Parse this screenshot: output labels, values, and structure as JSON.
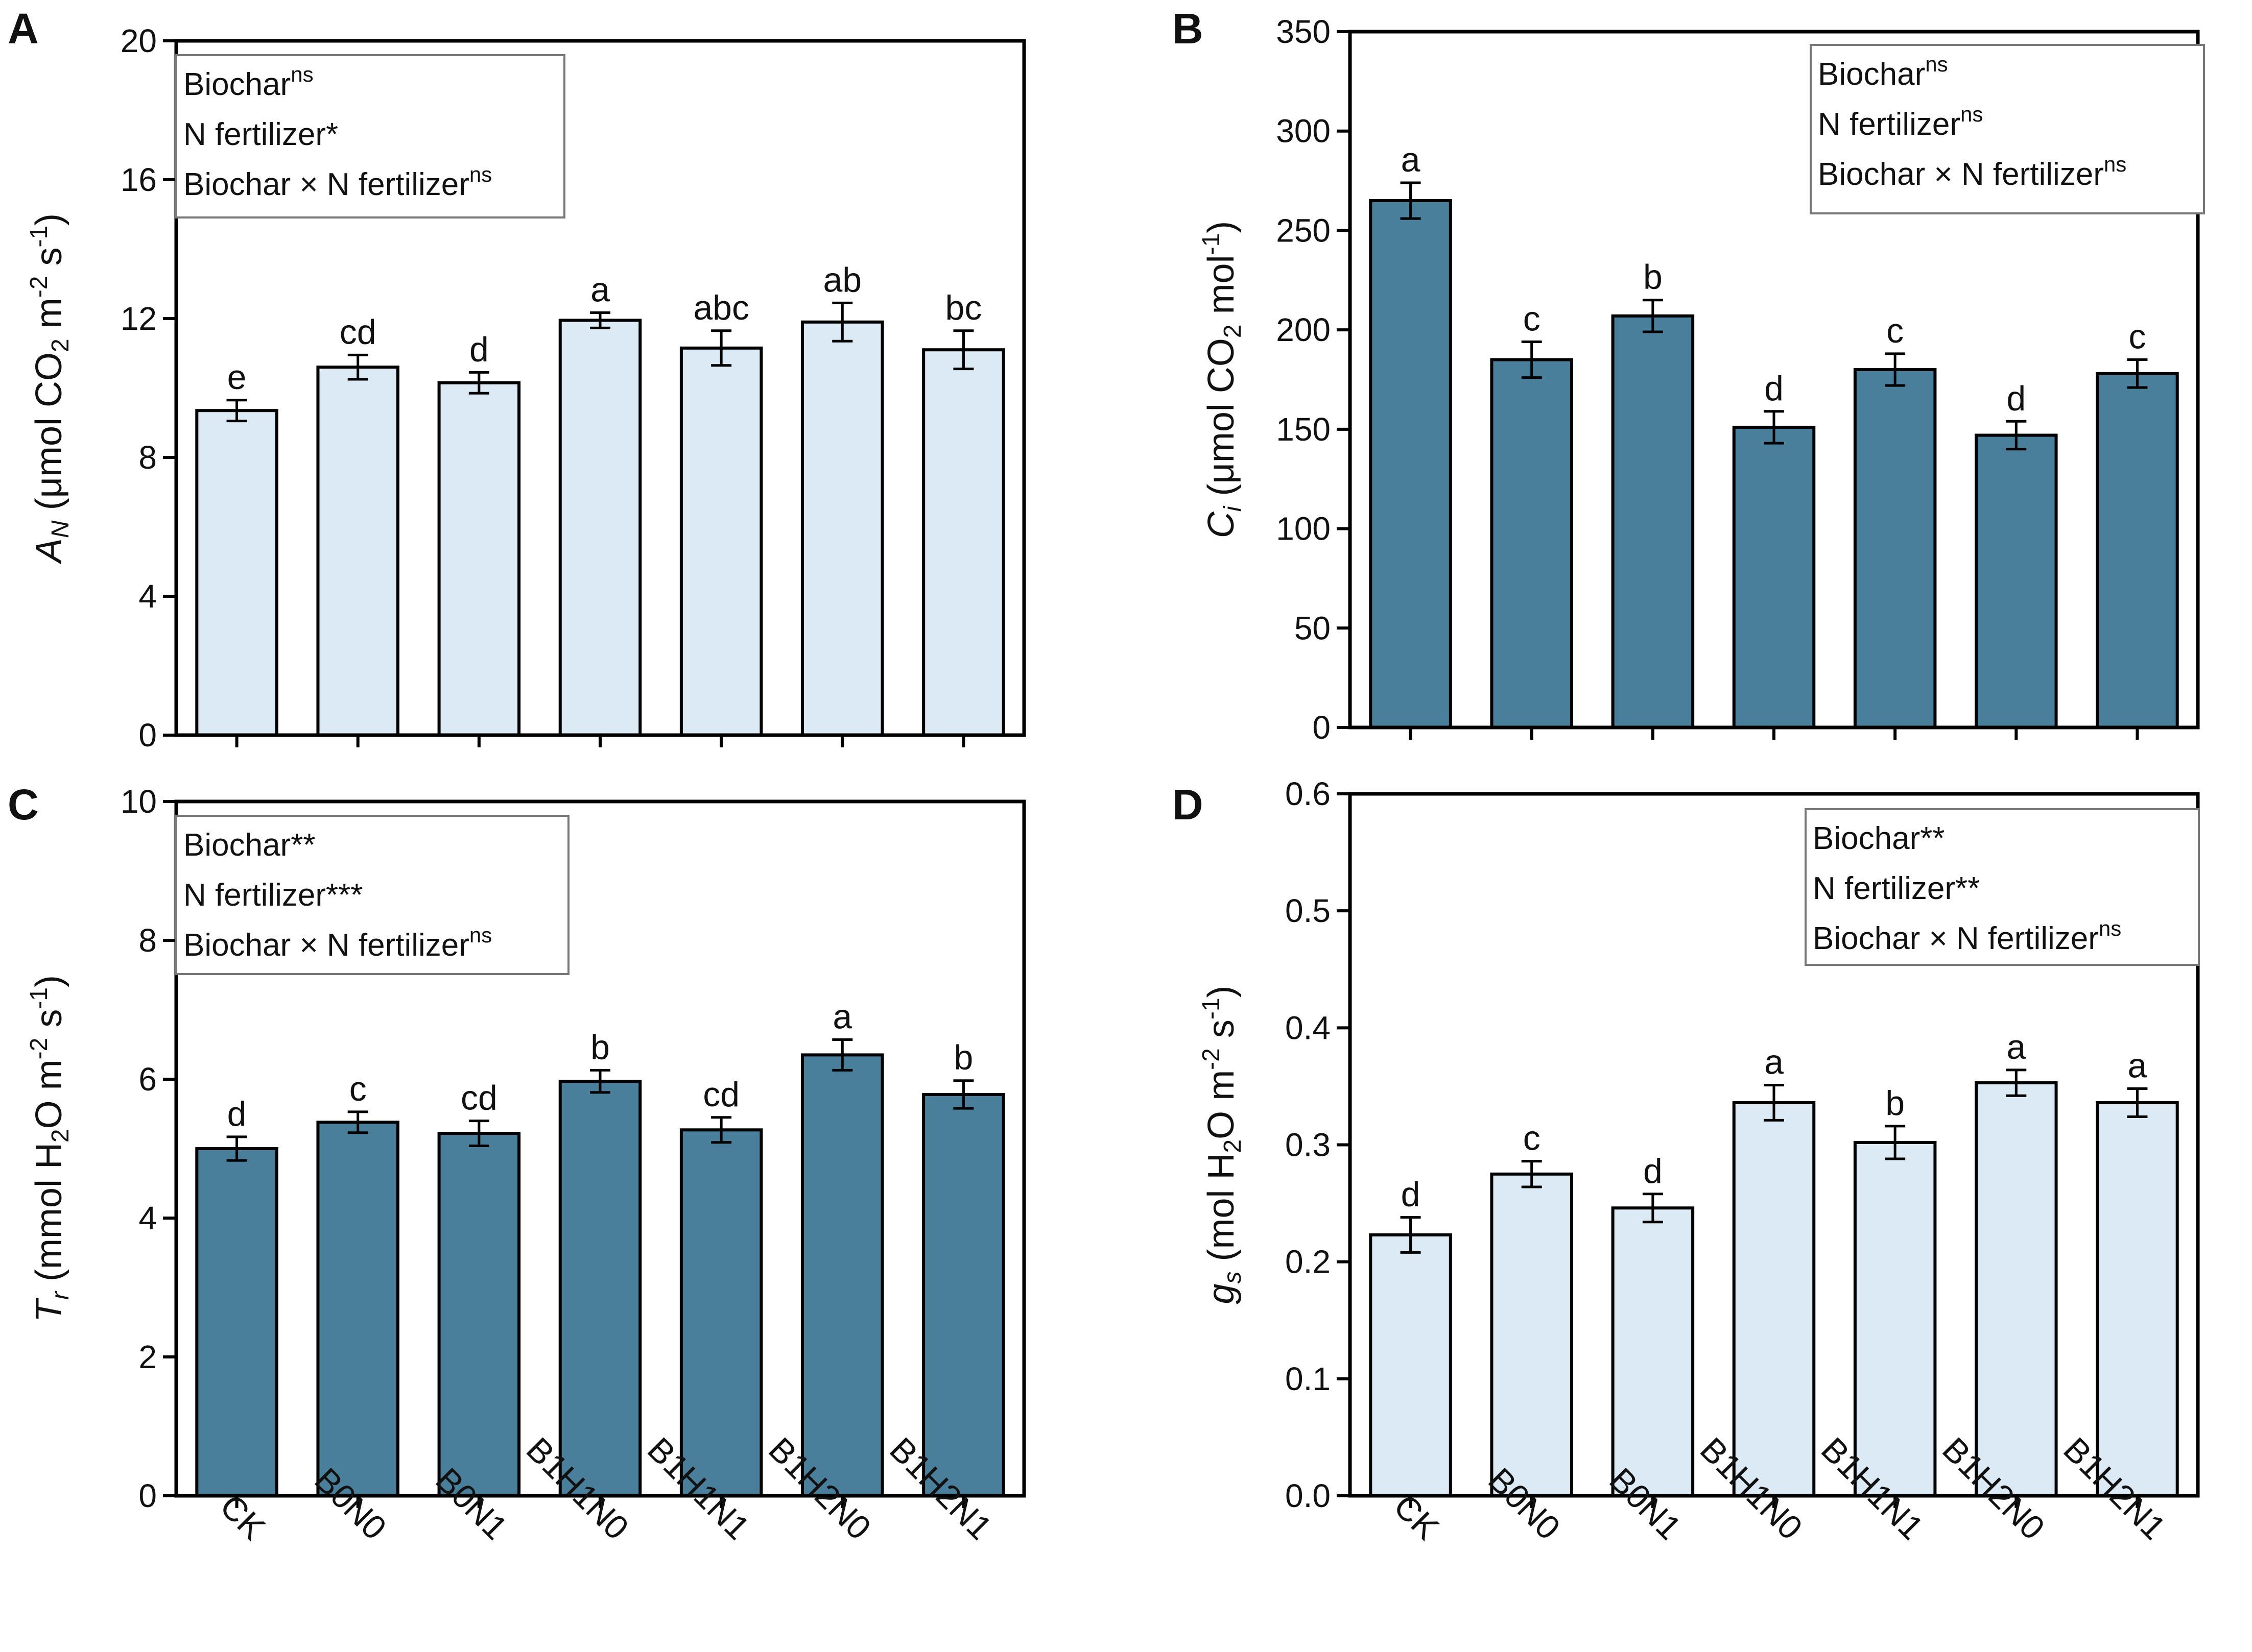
{
  "figure": {
    "colors": {
      "light_bar": "#dbeaf4",
      "dark_bar": "#4a7f9c",
      "outline": "#000000"
    }
  },
  "chart_data": [
    {
      "panel": "A",
      "type": "bar",
      "fill": "light",
      "categories": [
        "CK",
        "B0N0",
        "B0N1",
        "B1H1N0",
        "B1H1N1",
        "B1H2N0",
        "B1H2N1"
      ],
      "values": [
        9.35,
        10.6,
        10.15,
        11.95,
        11.15,
        11.9,
        11.1
      ],
      "errors": [
        0.3,
        0.35,
        0.3,
        0.22,
        0.5,
        0.55,
        0.55
      ],
      "letters": [
        "e",
        "cd",
        "d",
        "a",
        "abc",
        "ab",
        "bc"
      ],
      "ylim": [
        0,
        20
      ],
      "yticks": [
        "0",
        "4",
        "8",
        "12",
        "16",
        "20"
      ],
      "ylabel": {
        "var": "A",
        "var_sub": "N",
        "open": " (μmol CO",
        "sub1": "2",
        "mid": " m",
        "sup1": "-2",
        "mid2": " s",
        "sup2": "-1",
        "close": ")"
      },
      "show_xlabels": false,
      "legend": {
        "position": "top-left",
        "lines": [
          {
            "text": "Biochar",
            "sup": "ns"
          },
          {
            "text": "N fertilizer*",
            "sup": ""
          },
          {
            "text": "Biochar × N fertilizer",
            "sup": "ns"
          }
        ]
      }
    },
    {
      "panel": "B",
      "type": "bar",
      "fill": "dark",
      "categories": [
        "CK",
        "B0N0",
        "B0N1",
        "B1H1N0",
        "B1H1N1",
        "B1H2N0",
        "B1H2N1"
      ],
      "values": [
        265,
        185,
        207,
        151,
        180,
        147,
        178
      ],
      "errors": [
        9,
        9,
        8,
        8,
        8,
        7,
        7
      ],
      "letters": [
        "a",
        "c",
        "b",
        "d",
        "c",
        "d",
        "c"
      ],
      "ylim": [
        0,
        350
      ],
      "yticks": [
        "0",
        "50",
        "100",
        "150",
        "200",
        "250",
        "300",
        "350"
      ],
      "ylabel": {
        "var": "C",
        "var_sub": "i",
        "open": " (μmol CO",
        "sub1": "2",
        "mid": " mol",
        "sup1": "-1",
        "mid2": "",
        "sup2": "",
        "close": ")"
      },
      "show_xlabels": false,
      "legend": {
        "position": "top-right",
        "lines": [
          {
            "text": "Biochar",
            "sup": "ns"
          },
          {
            "text": "N fertilizer",
            "sup": "ns"
          },
          {
            "text": "Biochar × N fertilizer",
            "sup": "ns"
          }
        ]
      }
    },
    {
      "panel": "C",
      "type": "bar",
      "fill": "dark",
      "categories": [
        "CK",
        "B0N0",
        "B0N1",
        "B1H1N0",
        "B1H1N1",
        "B1H2N0",
        "B1H2N1"
      ],
      "values": [
        5.0,
        5.38,
        5.22,
        5.97,
        5.27,
        6.35,
        5.78
      ],
      "errors": [
        0.17,
        0.15,
        0.18,
        0.16,
        0.18,
        0.22,
        0.2
      ],
      "letters": [
        "d",
        "c",
        "cd",
        "b",
        "cd",
        "a",
        "b"
      ],
      "ylim": [
        0,
        10
      ],
      "yticks": [
        "0",
        "2",
        "4",
        "6",
        "8",
        "10"
      ],
      "ylabel": {
        "var": "T",
        "var_sub": "r",
        "open": " (mmol H",
        "sub1": "2",
        "mid": "O m",
        "sup1": "-2",
        "mid2": " s",
        "sup2": "-1",
        "close": ")"
      },
      "show_xlabels": true,
      "legend": {
        "position": "top-left",
        "lines": [
          {
            "text": "Biochar**",
            "sup": ""
          },
          {
            "text": "N fertilizer***",
            "sup": ""
          },
          {
            "text": "Biochar × N fertilizer",
            "sup": "ns"
          }
        ]
      }
    },
    {
      "panel": "D",
      "type": "bar",
      "fill": "light",
      "categories": [
        "CK",
        "B0N0",
        "B0N1",
        "B1H1N0",
        "B1H1N1",
        "B1H2N0",
        "B1H2N1"
      ],
      "values": [
        0.223,
        0.275,
        0.246,
        0.336,
        0.302,
        0.353,
        0.336
      ],
      "errors": [
        0.015,
        0.011,
        0.012,
        0.015,
        0.014,
        0.011,
        0.012
      ],
      "letters": [
        "d",
        "c",
        "d",
        "a",
        "b",
        "a",
        "a"
      ],
      "ylim": [
        0,
        0.6
      ],
      "yticks": [
        "0.0",
        "0.1",
        "0.2",
        "0.3",
        "0.4",
        "0.5",
        "0.6"
      ],
      "ylabel": {
        "var": "g",
        "var_sub": "s",
        "open": " (mol H",
        "sub1": "2",
        "mid": "O m",
        "sup1": "-2",
        "mid2": " s",
        "sup2": "-1",
        "close": ")"
      },
      "show_xlabels": true,
      "legend": {
        "position": "top-right",
        "lines": [
          {
            "text": "Biochar**",
            "sup": ""
          },
          {
            "text": "N fertilizer**",
            "sup": ""
          },
          {
            "text": "Biochar × N fertilizer",
            "sup": "ns"
          }
        ]
      }
    }
  ]
}
